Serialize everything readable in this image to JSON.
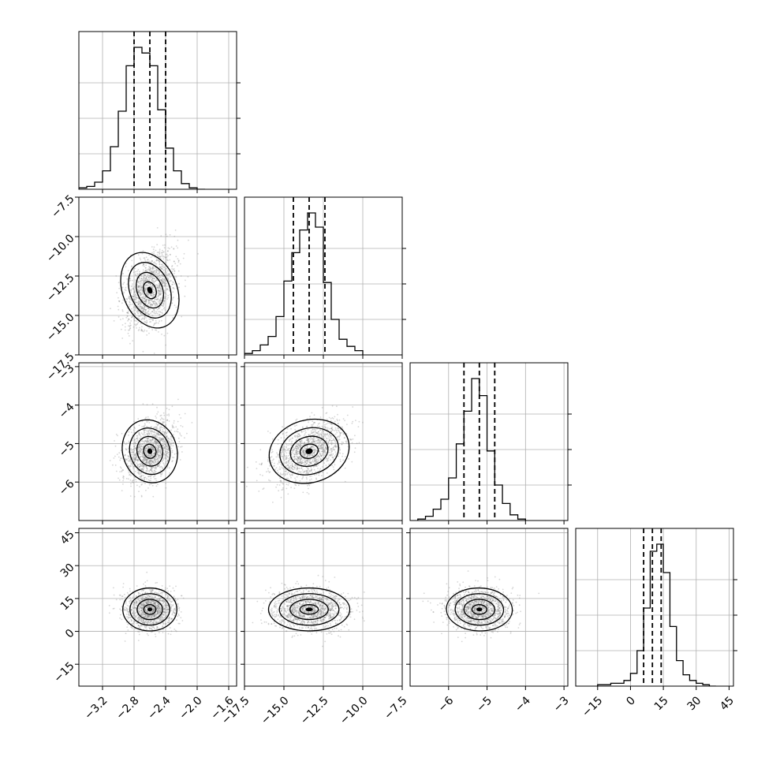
{
  "chart_data": {
    "type": "corner",
    "n_params": 4,
    "parameters": [
      {
        "name": "",
        "range": [
          -3.5,
          -1.5
        ],
        "ticks": [
          -3.2,
          -2.8,
          -2.4,
          -2.0,
          -1.6
        ],
        "tick_labels": [
          "−3.2",
          "−2.8",
          "−2.4",
          "−2.0",
          "−1.6"
        ],
        "mean": -2.6,
        "sd": 0.14,
        "quantiles": [
          -2.8,
          -2.6,
          -2.4
        ]
      },
      {
        "name": "",
        "range": [
          -17.5,
          -7.5
        ],
        "ticks": [
          -17.5,
          -15.0,
          -12.5,
          -10.0,
          -7.5
        ],
        "tick_labels": [
          "−17.5",
          "−15.0",
          "−12.5",
          "−10.0",
          "−7.5"
        ],
        "mean": -13.4,
        "sd": 1.05,
        "quantiles": [
          -14.4,
          -13.4,
          -12.4
        ]
      },
      {
        "name": "",
        "range": [
          -7.0,
          -2.9
        ],
        "ticks": [
          -6,
          -5,
          -4,
          -3
        ],
        "tick_labels": [
          "−6",
          "−5",
          "−4",
          "−3"
        ],
        "mean": -5.2,
        "sd": 0.35,
        "quantiles": [
          -5.6,
          -5.2,
          -4.8
        ]
      },
      {
        "name": "",
        "range": [
          -25,
          47
        ],
        "ticks": [
          -15,
          0,
          15,
          30,
          45
        ],
        "tick_labels": [
          "−15",
          "0",
          "15",
          "30",
          "45"
        ],
        "mean": 10,
        "sd": 4,
        "quantiles": [
          6,
          10,
          14
        ]
      }
    ],
    "histograms": [
      {
        "param": 0,
        "bin_edges": [
          -3.5,
          -3.4,
          -3.3,
          -3.2,
          -3.1,
          -3.0,
          -2.9,
          -2.8,
          -2.7,
          -2.6,
          -2.5,
          -2.4,
          -2.3,
          -2.2,
          -2.1,
          -2.0,
          -1.9
        ],
        "counts": [
          1,
          2,
          5,
          13,
          30,
          55,
          87,
          100,
          96,
          87,
          56,
          29,
          13,
          4,
          1,
          0
        ]
      },
      {
        "param": 1,
        "bin_edges": [
          -17.5,
          -17.0,
          -16.5,
          -16.0,
          -15.5,
          -15.0,
          -14.5,
          -14.0,
          -13.5,
          -13.0,
          -12.5,
          -12.0,
          -11.5,
          -11.0,
          -10.5,
          -10.0
        ],
        "counts": [
          1,
          3,
          7,
          13,
          27,
          52,
          72,
          88,
          100,
          90,
          51,
          25,
          11,
          6,
          3
        ]
      },
      {
        "param": 2,
        "bin_edges": [
          -6.8,
          -6.6,
          -6.4,
          -6.2,
          -6.0,
          -5.8,
          -5.6,
          -5.4,
          -5.2,
          -5.0,
          -4.8,
          -4.6,
          -4.4,
          -4.2,
          -4.0
        ],
        "counts": [
          1,
          3,
          8,
          15,
          30,
          54,
          77,
          100,
          88,
          49,
          25,
          12,
          4,
          1
        ]
      },
      {
        "param": 3,
        "bin_edges": [
          -15,
          -9,
          -3,
          0,
          3,
          6,
          9,
          12,
          15,
          18,
          21,
          24,
          27,
          30,
          33,
          36,
          39
        ],
        "counts": [
          1,
          2,
          4,
          9,
          25,
          55,
          95,
          100,
          80,
          42,
          18,
          8,
          4,
          2,
          1,
          0
        ]
      }
    ],
    "pairs": [
      {
        "x": 0,
        "y": 1
      },
      {
        "x": 0,
        "y": 2
      },
      {
        "x": 1,
        "y": 2
      },
      {
        "x": 0,
        "y": 3
      },
      {
        "x": 1,
        "y": 3
      },
      {
        "x": 2,
        "y": 3
      }
    ],
    "grid": true
  }
}
